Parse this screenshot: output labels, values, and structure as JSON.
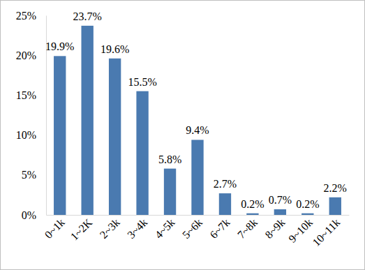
{
  "chart_data": {
    "type": "bar",
    "categories": [
      "0~1k",
      "1~2K",
      "2~3k",
      "3~4k",
      "4~5k",
      "5~6k",
      "6~7k",
      "7~8k",
      "8~9k",
      "9~10k",
      "10~11k"
    ],
    "values": [
      19.9,
      23.7,
      19.6,
      15.5,
      5.8,
      9.4,
      2.7,
      0.2,
      0.7,
      0.2,
      2.2
    ],
    "value_labels": [
      "19.9%",
      "23.7%",
      "19.6%",
      "15.5%",
      "5.8%",
      "9.4%",
      "2.7%",
      "0.2%",
      "0.7%",
      "0.2%",
      "2.2%"
    ],
    "color": "#4a7ab0",
    "ylim": [
      0,
      25
    ],
    "yticks": [
      {
        "value": 0,
        "label": "0%"
      },
      {
        "value": 5,
        "label": "5%"
      },
      {
        "value": 10,
        "label": "10%"
      },
      {
        "value": 15,
        "label": "15%"
      },
      {
        "value": 20,
        "label": "20%"
      },
      {
        "value": 25,
        "label": "25%"
      }
    ],
    "grid": false,
    "data_labels": true
  }
}
